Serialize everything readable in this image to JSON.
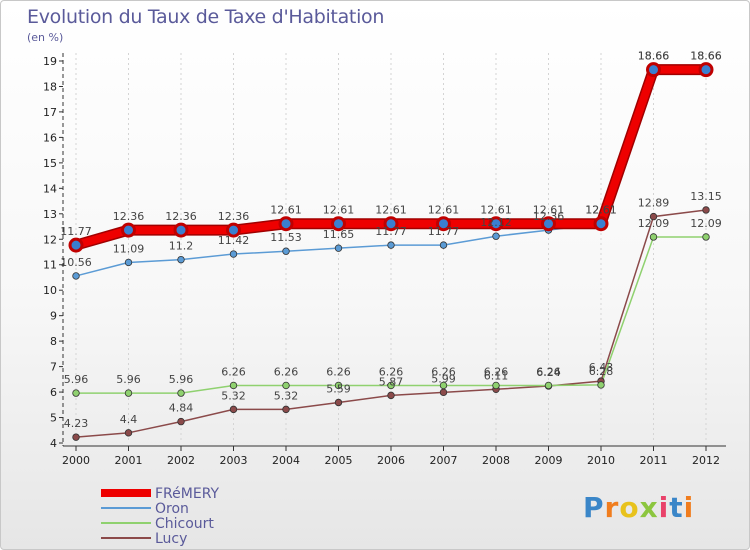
{
  "chart_data": {
    "type": "line",
    "title": "Evolution du Taux de Taxe d'Habitation",
    "unit_note": "(en %)",
    "x": [
      "2000",
      "2001",
      "2002",
      "2003",
      "2004",
      "2005",
      "2006",
      "2007",
      "2008",
      "2009",
      "2010",
      "2011",
      "2012"
    ],
    "ylim": [
      4,
      19
    ],
    "yticks": [
      4,
      5,
      6,
      7,
      8,
      9,
      10,
      11,
      12,
      13,
      14,
      15,
      16,
      17,
      18,
      19
    ],
    "grid": "vertical dashed",
    "legend_position": "bottom-left",
    "series": [
      {
        "name": "FRéMERY",
        "color": "#ee0000",
        "values": [
          11.77,
          12.36,
          12.36,
          12.36,
          12.61,
          12.61,
          12.61,
          12.61,
          12.61,
          12.61,
          12.61,
          18.66,
          18.66
        ],
        "labels": [
          "11.77",
          "12.36",
          "12.36",
          "12.36",
          "12.61",
          "12.61",
          "12.61",
          "12.61",
          "12.61",
          "12.61",
          "12.61",
          "18.66",
          "18.66"
        ]
      },
      {
        "name": "Oron",
        "color": "#5b9bd5",
        "values": [
          10.56,
          11.09,
          11.2,
          11.42,
          11.53,
          11.65,
          11.77,
          11.77,
          12.12,
          12.36,
          12.61,
          18.66,
          18.66
        ],
        "labels": [
          "10.56",
          "11.09",
          "11.2",
          "11.42",
          "11.53",
          "11.65",
          "11.77",
          "11.77",
          "12.12",
          "12.36",
          "12.61",
          "18.66",
          "18.66"
        ]
      },
      {
        "name": "Chicourt",
        "color": "#8fd16f",
        "values": [
          5.96,
          5.96,
          5.96,
          6.26,
          6.26,
          6.26,
          6.26,
          6.26,
          6.26,
          6.26,
          6.28,
          12.09,
          12.09
        ],
        "labels": [
          "5.96",
          "5.96",
          "5.96",
          "6.26",
          "6.26",
          "6.26",
          "6.26",
          "6.26",
          "6.26",
          "6.26",
          "6.28",
          "12.09",
          "12.09"
        ]
      },
      {
        "name": "Lucy",
        "color": "#8b4a4a",
        "values": [
          4.23,
          4.4,
          4.84,
          5.32,
          5.32,
          5.59,
          5.87,
          5.99,
          6.11,
          6.24,
          6.43,
          12.89,
          13.15
        ],
        "labels": [
          "4.23",
          "4.4",
          "4.84",
          "5.32",
          "5.32",
          "5.59",
          "5.87",
          "5.99",
          "6.11",
          "6.24",
          "6.43",
          "12.89",
          "13.15"
        ]
      }
    ]
  },
  "logo": {
    "letters": [
      "P",
      "r",
      "o",
      "x",
      "i",
      "t",
      "i"
    ],
    "colors": [
      "#3a86c8",
      "#f07d1e",
      "#e8c21c",
      "#8cc63f",
      "#e9426a",
      "#3a86c8",
      "#f07d1e"
    ]
  }
}
